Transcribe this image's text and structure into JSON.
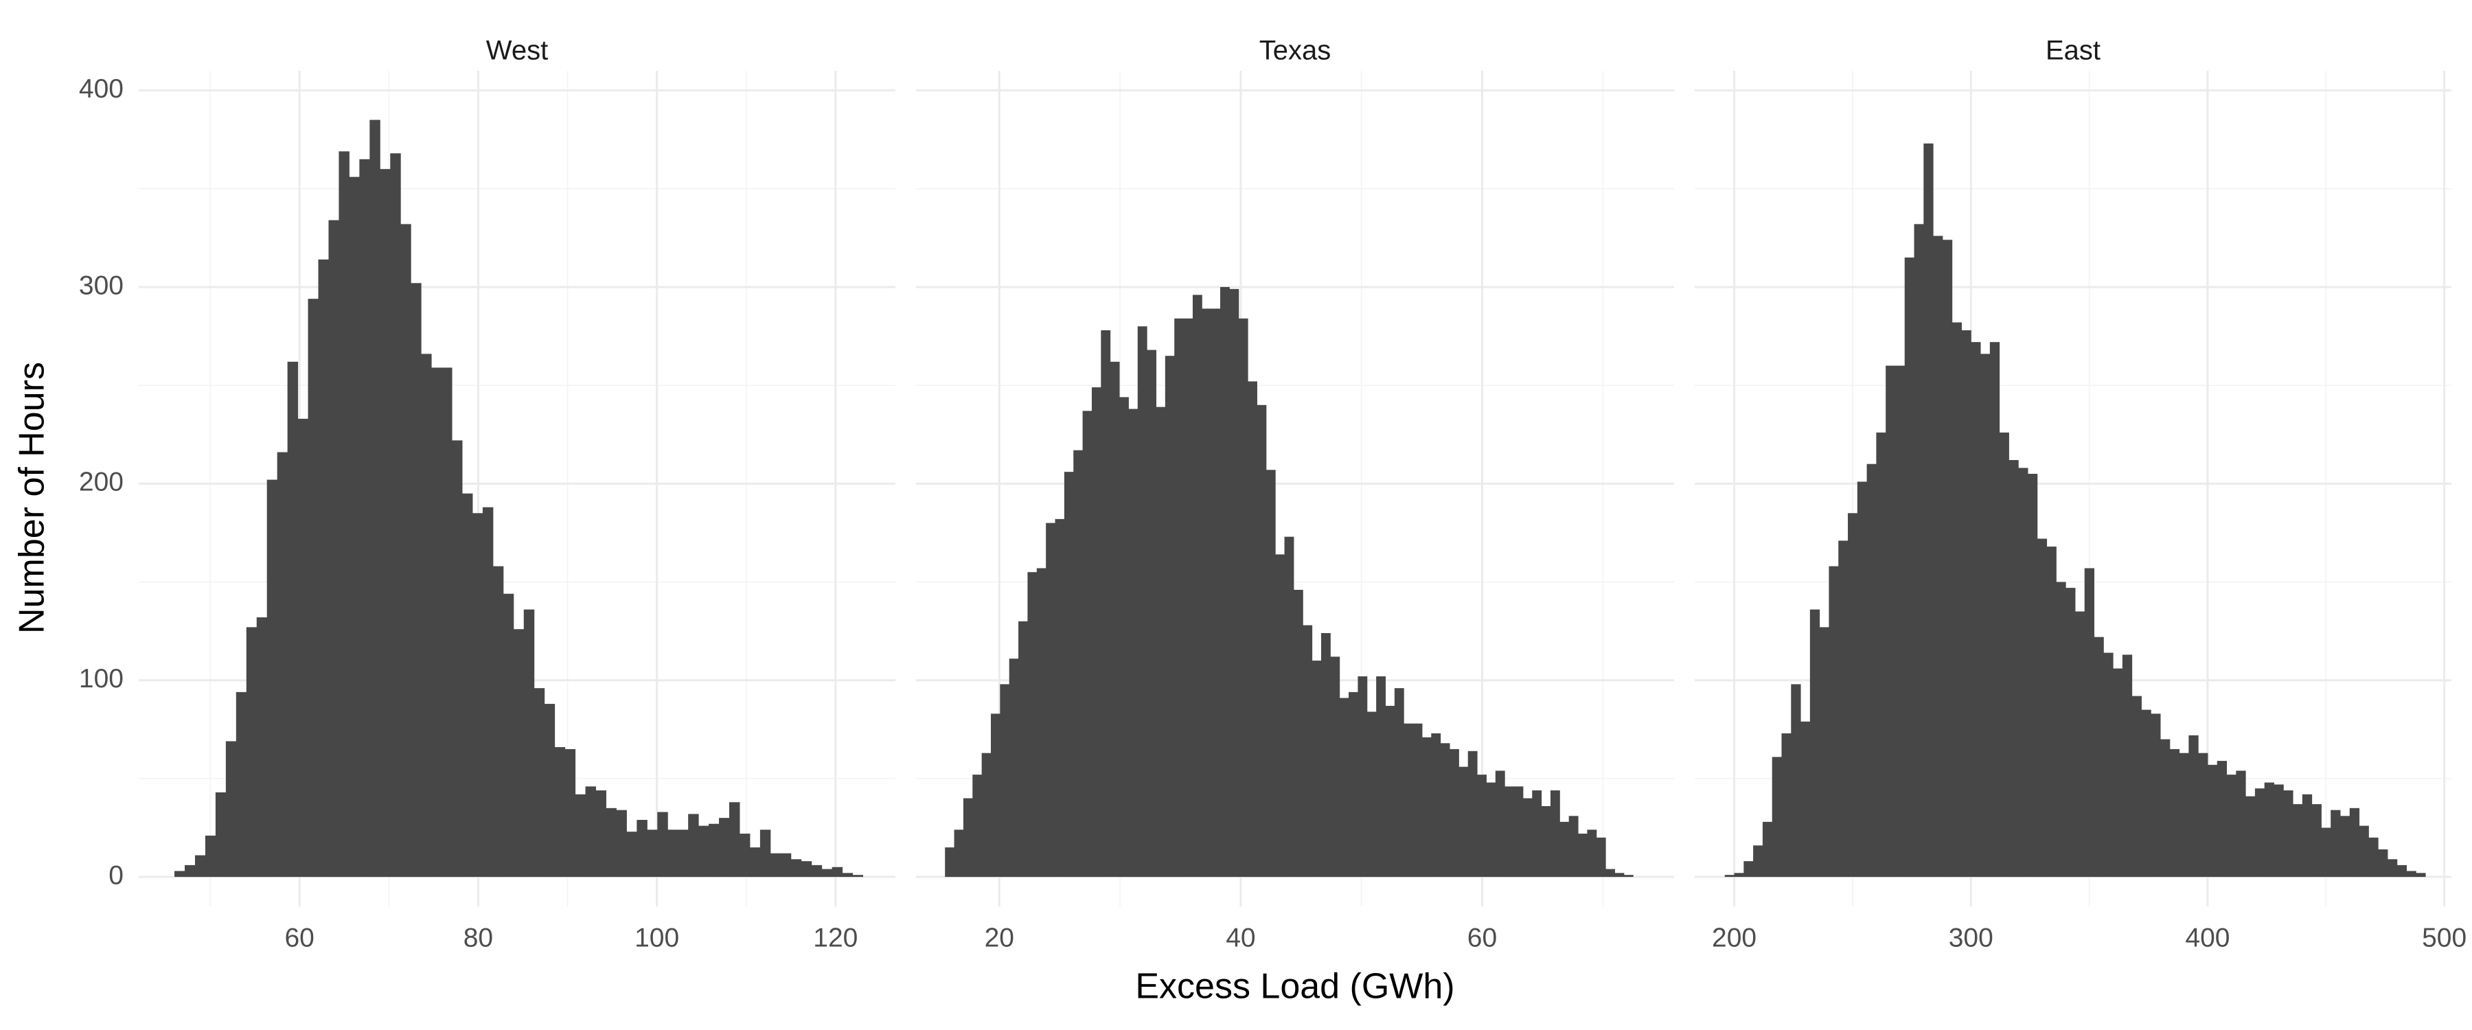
{
  "x_label": "Excess Load (GWh)",
  "y_label": "Number of Hours",
  "chart_data": [
    {
      "type": "histogram",
      "title": "West",
      "color": "#474747",
      "grid": true,
      "bins": [
        46,
        47.15,
        48.3,
        49.45,
        50.6,
        51.75,
        52.9,
        54.05,
        55.2,
        56.35,
        57.5,
        58.65,
        59.8,
        60.95,
        62.1,
        63.25,
        64.4,
        65.55,
        66.7,
        67.85,
        69,
        70.15,
        71.3,
        72.45,
        73.6,
        74.75,
        75.9,
        77.05,
        78.2,
        79.35,
        80.5,
        81.65,
        82.8,
        83.95,
        85.1,
        86.25,
        87.4,
        88.55,
        89.7,
        90.85,
        92,
        93.15,
        94.3,
        95.45,
        96.6,
        97.75,
        98.9,
        100.05,
        101.2,
        102.35,
        103.5,
        104.65,
        105.8,
        106.95,
        108.1,
        109.25,
        110.4,
        111.55,
        112.7,
        113.85,
        115,
        116.15,
        117.3,
        118.45,
        119.6,
        120.75,
        121.9,
        123.05
      ],
      "values": [
        3,
        6,
        11,
        21,
        43,
        69,
        94,
        127,
        132,
        202,
        216,
        262,
        233,
        294,
        314,
        334,
        369,
        356,
        365,
        385,
        360,
        368,
        332,
        302,
        266,
        259,
        259,
        222,
        195,
        185,
        188,
        158,
        144,
        126,
        136,
        96,
        88,
        66,
        65,
        42,
        46,
        44,
        35,
        34,
        23,
        29,
        24,
        33,
        24,
        24,
        32,
        26,
        27,
        30,
        38,
        22,
        15,
        24,
        12,
        12,
        9,
        8,
        6,
        4,
        5,
        2,
        1
      ],
      "xlim": [
        42,
        126.7
      ],
      "xticks": [
        60,
        80,
        100,
        120
      ],
      "ylim": [
        -15,
        410
      ],
      "yticks": [
        0,
        100,
        200,
        300,
        400
      ]
    },
    {
      "type": "histogram",
      "title": "Texas",
      "color": "#474747",
      "grid": true,
      "bins": [
        15.5,
        16.26,
        17.02,
        17.78,
        18.54,
        19.3,
        20.06,
        20.82,
        21.58,
        22.34,
        23.1,
        23.86,
        24.62,
        25.38,
        26.14,
        26.9,
        27.66,
        28.42,
        29.18,
        29.94,
        30.7,
        31.46,
        32.22,
        32.98,
        33.74,
        34.5,
        35.26,
        36.02,
        36.78,
        37.54,
        38.3,
        39.06,
        39.82,
        40.58,
        41.34,
        42.1,
        42.86,
        43.62,
        44.38,
        45.14,
        45.9,
        46.66,
        47.42,
        48.18,
        48.94,
        49.7,
        50.46,
        51.22,
        51.98,
        52.74,
        53.5,
        54.26,
        55.02,
        55.78,
        56.54,
        57.3,
        58.06,
        58.82,
        59.58,
        60.34,
        61.1,
        61.86,
        62.62,
        63.38,
        64.14,
        64.9,
        65.66,
        66.42,
        67.18,
        67.94,
        68.7,
        69.46,
        70.22,
        70.98,
        71.74,
        72.5
      ],
      "values": [
        15,
        24,
        40,
        52,
        63,
        83,
        98,
        111,
        130,
        155,
        157,
        180,
        182,
        206,
        217,
        237,
        249,
        278,
        262,
        244,
        238,
        280,
        268,
        239,
        265,
        284,
        284,
        296,
        289,
        289,
        300,
        299,
        284,
        252,
        240,
        207,
        164,
        173,
        146,
        128,
        110,
        124,
        112,
        91,
        94,
        102,
        84,
        102,
        87,
        96,
        78,
        78,
        71,
        73,
        68,
        65,
        56,
        64,
        52,
        48,
        54,
        46,
        46,
        40,
        44,
        36,
        44,
        28,
        31,
        22,
        24,
        20,
        4,
        2,
        1
      ],
      "xlim": [
        13.1,
        75.9
      ],
      "xticks": [
        20,
        40,
        60
      ],
      "ylim": [
        -15,
        410
      ],
      "yticks": [
        0,
        100,
        200,
        300,
        400
      ]
    },
    {
      "type": "histogram",
      "title": "East",
      "color": "#474747",
      "grid": true,
      "bins": [
        196,
        200,
        204,
        208,
        212,
        216,
        220,
        224,
        228,
        232,
        236,
        240,
        244,
        248,
        252,
        256,
        260,
        264,
        268,
        272,
        276,
        280,
        284,
        288,
        292,
        296,
        300,
        304,
        308,
        312,
        316,
        320,
        324,
        328,
        332,
        336,
        340,
        344,
        348,
        352,
        356,
        360,
        364,
        368,
        372,
        376,
        380,
        384,
        388,
        392,
        396,
        400,
        404,
        408,
        412,
        416,
        420,
        424,
        428,
        432,
        436,
        440,
        444,
        448,
        452,
        456,
        460,
        464,
        468,
        472,
        476,
        480,
        484,
        488,
        492
      ],
      "values": [
        1,
        2,
        8,
        16,
        28,
        61,
        73,
        98,
        79,
        136,
        127,
        158,
        171,
        185,
        201,
        210,
        226,
        260,
        260,
        315,
        332,
        373,
        326,
        324,
        282,
        278,
        272,
        266,
        272,
        226,
        212,
        208,
        205,
        172,
        168,
        150,
        147,
        135,
        157,
        122,
        114,
        106,
        113,
        92,
        85,
        83,
        70,
        65,
        63,
        72,
        63,
        57,
        59,
        52,
        54,
        41,
        45,
        48,
        47,
        44,
        37,
        42,
        37,
        25,
        34,
        31,
        35,
        26,
        20,
        14,
        9,
        6,
        3,
        2
      ],
      "xlim": [
        183.3,
        503
      ],
      "xticks": [
        200,
        300,
        400,
        500
      ],
      "ylim": [
        -15,
        410
      ],
      "yticks": [
        0,
        100,
        200,
        300,
        400
      ]
    }
  ]
}
